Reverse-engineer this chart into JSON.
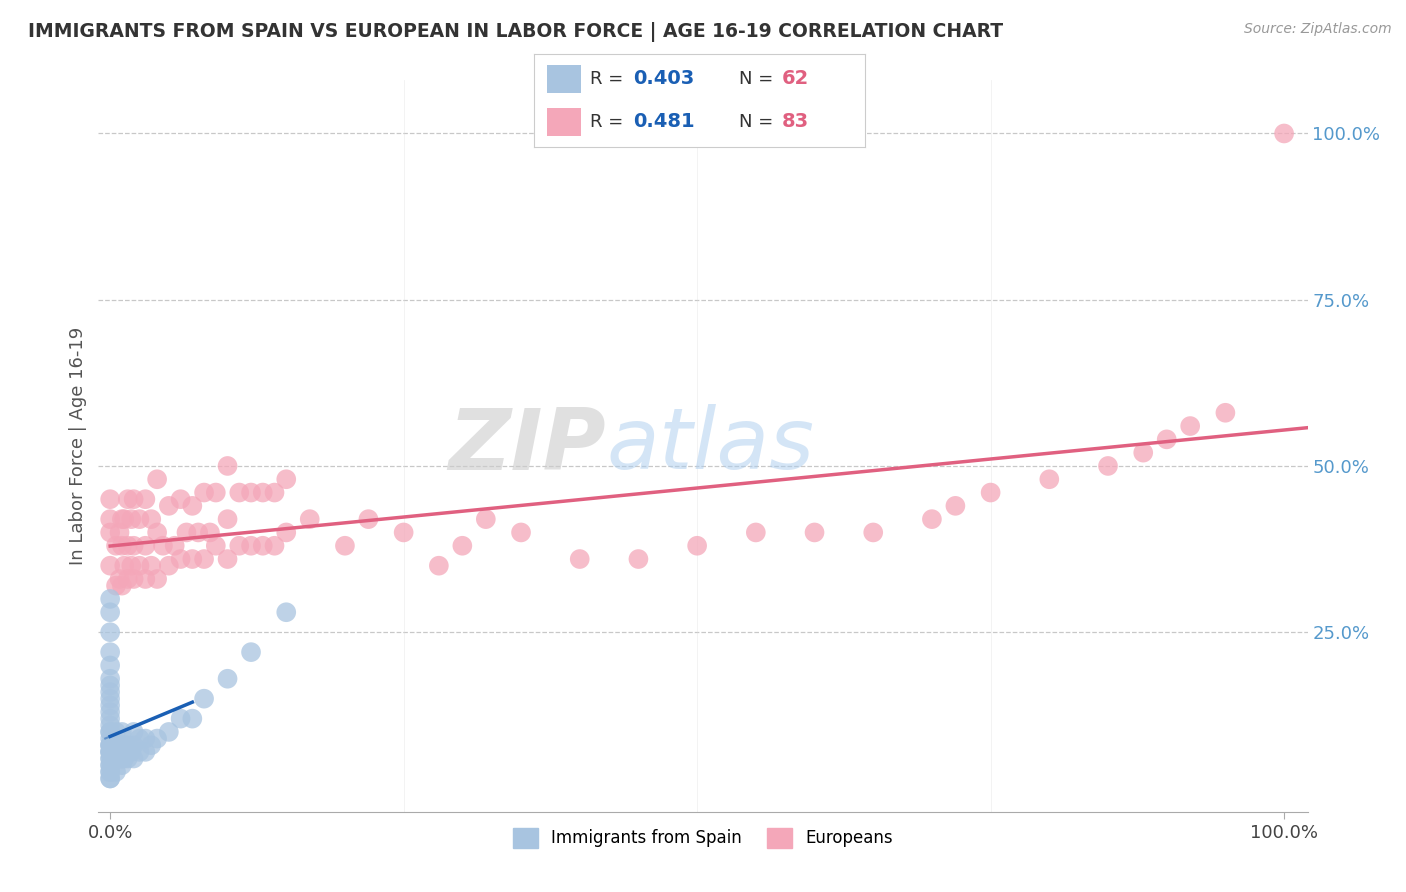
{
  "title": "IMMIGRANTS FROM SPAIN VS EUROPEAN IN LABOR FORCE | AGE 16-19 CORRELATION CHART",
  "source_text": "Source: ZipAtlas.com",
  "ylabel": "In Labor Force | Age 16-19",
  "legend_r_spain": "0.403",
  "legend_n_spain": "62",
  "legend_r_euro": "0.481",
  "legend_n_euro": "83",
  "spain_color": "#a8c4e0",
  "euro_color": "#f4a7b9",
  "spain_line_color": "#1a5fb4",
  "euro_line_color": "#e06080",
  "watermark_zip": "ZIP",
  "watermark_atlas": "atlas",
  "background_color": "#ffffff",
  "grid_color": "#bbbbbb",
  "title_color": "#333333",
  "source_color": "#999999",
  "ylabel_color": "#555555",
  "right_tick_color": "#5599cc",
  "spain_x": [
    0.0,
    0.0,
    0.0,
    0.0,
    0.0,
    0.0,
    0.0,
    0.0,
    0.0,
    0.0,
    0.0,
    0.0,
    0.0,
    0.0,
    0.0,
    0.0,
    0.0,
    0.0,
    0.0,
    0.0,
    0.0,
    0.0,
    0.0,
    0.0,
    0.0,
    0.0,
    0.0,
    0.0,
    0.0,
    0.0,
    0.005,
    0.005,
    0.005,
    0.005,
    0.008,
    0.008,
    0.01,
    0.01,
    0.01,
    0.01,
    0.01,
    0.012,
    0.012,
    0.015,
    0.015,
    0.018,
    0.02,
    0.02,
    0.02,
    0.025,
    0.025,
    0.03,
    0.03,
    0.035,
    0.04,
    0.05,
    0.06,
    0.07,
    0.08,
    0.1,
    0.12,
    0.15
  ],
  "spain_y": [
    0.03,
    0.03,
    0.04,
    0.04,
    0.05,
    0.05,
    0.06,
    0.06,
    0.07,
    0.07,
    0.07,
    0.08,
    0.08,
    0.08,
    0.09,
    0.1,
    0.1,
    0.11,
    0.12,
    0.13,
    0.14,
    0.15,
    0.16,
    0.17,
    0.18,
    0.2,
    0.22,
    0.25,
    0.28,
    0.3,
    0.04,
    0.06,
    0.08,
    0.1,
    0.06,
    0.08,
    0.05,
    0.06,
    0.07,
    0.08,
    0.1,
    0.06,
    0.08,
    0.06,
    0.08,
    0.07,
    0.06,
    0.08,
    0.1,
    0.07,
    0.09,
    0.07,
    0.09,
    0.08,
    0.09,
    0.1,
    0.12,
    0.12,
    0.15,
    0.18,
    0.22,
    0.28
  ],
  "euro_x": [
    0.0,
    0.0,
    0.0,
    0.0,
    0.005,
    0.005,
    0.008,
    0.008,
    0.01,
    0.01,
    0.01,
    0.012,
    0.012,
    0.015,
    0.015,
    0.015,
    0.018,
    0.018,
    0.02,
    0.02,
    0.02,
    0.025,
    0.025,
    0.03,
    0.03,
    0.03,
    0.035,
    0.035,
    0.04,
    0.04,
    0.04,
    0.045,
    0.05,
    0.05,
    0.055,
    0.06,
    0.06,
    0.065,
    0.07,
    0.07,
    0.075,
    0.08,
    0.08,
    0.085,
    0.09,
    0.09,
    0.1,
    0.1,
    0.1,
    0.11,
    0.11,
    0.12,
    0.12,
    0.13,
    0.13,
    0.14,
    0.14,
    0.15,
    0.15,
    0.17,
    0.2,
    0.22,
    0.25,
    0.28,
    0.3,
    0.32,
    0.35,
    0.4,
    0.45,
    0.5,
    0.55,
    0.6,
    0.65,
    0.7,
    0.72,
    0.75,
    0.8,
    0.85,
    0.88,
    0.9,
    0.92,
    0.95,
    1.0
  ],
  "euro_y": [
    0.35,
    0.4,
    0.42,
    0.45,
    0.32,
    0.38,
    0.33,
    0.4,
    0.32,
    0.38,
    0.42,
    0.35,
    0.42,
    0.33,
    0.38,
    0.45,
    0.35,
    0.42,
    0.33,
    0.38,
    0.45,
    0.35,
    0.42,
    0.33,
    0.38,
    0.45,
    0.35,
    0.42,
    0.33,
    0.4,
    0.48,
    0.38,
    0.35,
    0.44,
    0.38,
    0.36,
    0.45,
    0.4,
    0.36,
    0.44,
    0.4,
    0.36,
    0.46,
    0.4,
    0.38,
    0.46,
    0.36,
    0.42,
    0.5,
    0.38,
    0.46,
    0.38,
    0.46,
    0.38,
    0.46,
    0.38,
    0.46,
    0.4,
    0.48,
    0.42,
    0.38,
    0.42,
    0.4,
    0.35,
    0.38,
    0.42,
    0.4,
    0.36,
    0.36,
    0.38,
    0.4,
    0.4,
    0.4,
    0.42,
    0.44,
    0.46,
    0.48,
    0.5,
    0.52,
    0.54,
    0.56,
    0.58,
    1.0
  ],
  "xlim": [
    -0.01,
    1.02
  ],
  "ylim": [
    -0.02,
    1.08
  ],
  "xtick_positions": [
    0.0,
    1.0
  ],
  "xtick_labels": [
    "0.0%",
    "100.0%"
  ],
  "ytick_positions": [
    0.25,
    0.5,
    0.75,
    1.0
  ],
  "ytick_labels": [
    "25.0%",
    "50.0%",
    "75.0%",
    "100.0%"
  ]
}
